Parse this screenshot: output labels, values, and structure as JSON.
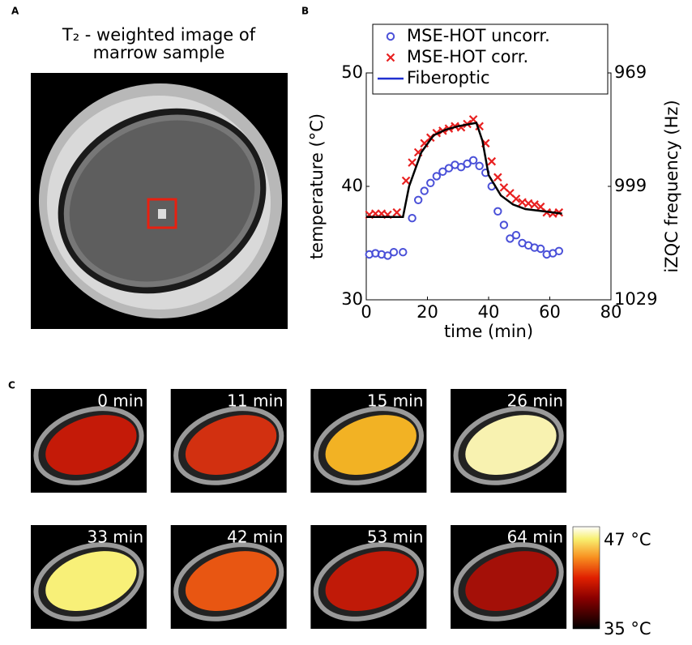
{
  "panel_labels": [
    "A",
    "B",
    "C"
  ],
  "image_title": [
    "T₂ - weighted image of",
    "marrow sample"
  ],
  "time_maps": [
    "0 min",
    "11 min",
    "15 min",
    "26 min",
    "33 min",
    "42 min",
    "53 min",
    "64 min"
  ],
  "colorbar": [
    "47 °C",
    "35 °C"
  ],
  "chart_data": {
    "type": "scatter",
    "xlabel": "time (min)",
    "ylabel": "temperature (°C)",
    "y2label": "iZQC frequency (Hz)",
    "xlim": [
      0,
      80
    ],
    "xticks": [
      0,
      20,
      40,
      60,
      80
    ],
    "ylim": [
      30,
      50
    ],
    "yticks": [
      30,
      40,
      50
    ],
    "y2lim": [
      1029,
      969
    ],
    "y2ticks": [
      1029,
      999,
      969
    ],
    "legend": "top",
    "series": [
      {
        "name": "MSE-HOT uncorr.",
        "color": "#4a50d8",
        "marker": "circle",
        "x": [
          1,
          3,
          5,
          7,
          9,
          12,
          15,
          17,
          19,
          21,
          23,
          25,
          27,
          29,
          31,
          33,
          35,
          37,
          39,
          41,
          43,
          45,
          47,
          49,
          51,
          53,
          55,
          57,
          59,
          61,
          63
        ],
        "values": [
          34.0,
          34.1,
          34.0,
          33.9,
          34.2,
          34.2,
          37.2,
          38.8,
          39.6,
          40.3,
          40.9,
          41.3,
          41.6,
          41.9,
          41.7,
          42.0,
          42.3,
          41.8,
          41.2,
          40.0,
          37.8,
          36.6,
          35.4,
          35.7,
          35.0,
          34.8,
          34.6,
          34.5,
          34.0,
          34.1,
          34.3
        ]
      },
      {
        "name": "MSE-HOT corr.",
        "color": "#e82020",
        "marker": "x",
        "x": [
          1,
          3,
          5,
          7,
          10,
          13,
          15,
          17,
          19,
          21,
          23,
          25,
          27,
          29,
          31,
          33,
          35,
          37,
          39,
          41,
          43,
          45,
          47,
          49,
          51,
          53,
          55,
          57,
          59,
          61,
          63
        ],
        "values": [
          37.5,
          37.6,
          37.6,
          37.5,
          37.7,
          40.5,
          42.1,
          43.0,
          43.8,
          44.3,
          44.7,
          44.9,
          45.1,
          45.3,
          45.2,
          45.5,
          45.9,
          45.3,
          43.8,
          42.2,
          40.8,
          39.9,
          39.4,
          38.9,
          38.6,
          38.5,
          38.4,
          38.2,
          37.7,
          37.6,
          37.7
        ]
      },
      {
        "name": "Fiberoptic",
        "color": "#2030d0",
        "line_color": "#000000",
        "marker": "line",
        "x": [
          0,
          12,
          14,
          18,
          22,
          26,
          30,
          34,
          36,
          38,
          40,
          44,
          48,
          52,
          58,
          64
        ],
        "values": [
          37.3,
          37.3,
          40.0,
          43.0,
          44.5,
          45.0,
          45.3,
          45.5,
          45.6,
          44.0,
          41.0,
          39.2,
          38.4,
          38.0,
          37.8,
          37.6
        ]
      }
    ]
  }
}
